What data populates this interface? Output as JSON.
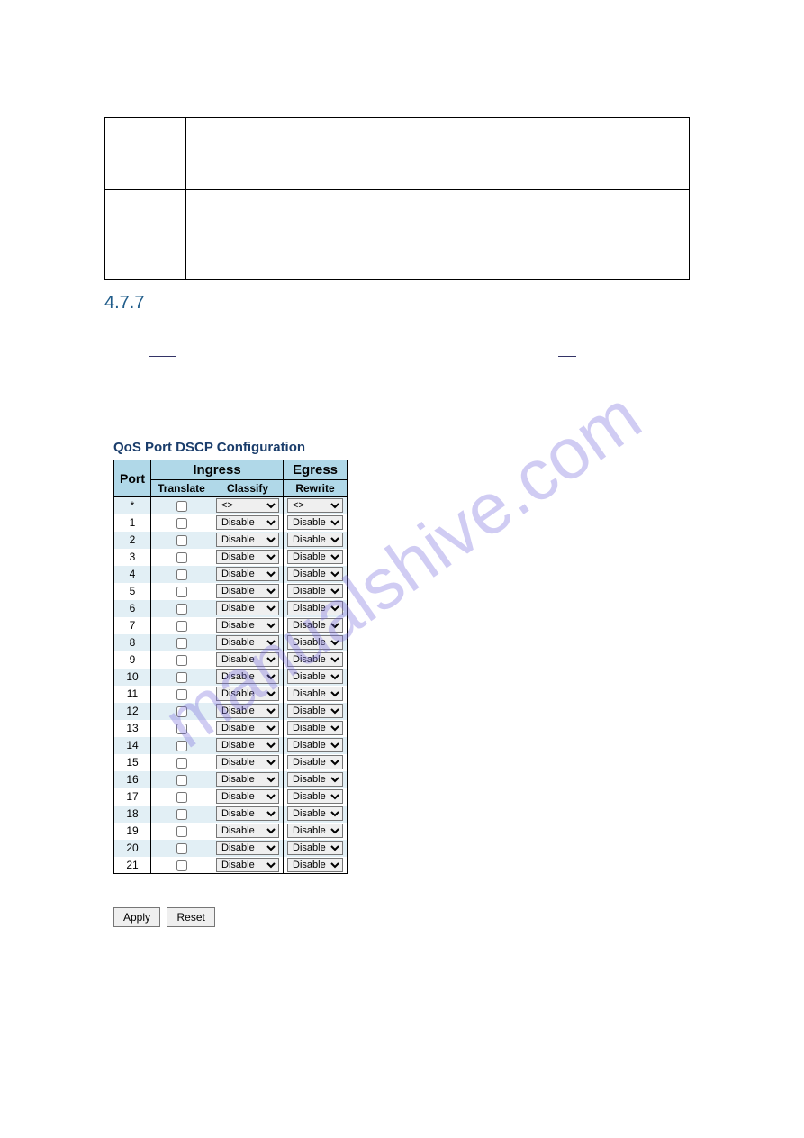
{
  "watermark_text": "manualshive.com",
  "section_number": "4.7.7",
  "config_title": "QoS Port DSCP Configuration",
  "colors": {
    "header_bg": "#b0d8e8",
    "row_odd_bg": "#e2eff5",
    "row_even_bg": "#ffffff",
    "border": "#000000",
    "title_color": "#1a3d6b",
    "section_color": "#1f5c8a",
    "watermark_color": "rgba(120, 110, 220, 0.35)"
  },
  "table": {
    "headers": {
      "port": "Port",
      "ingress": "Ingress",
      "egress": "Egress",
      "translate": "Translate",
      "classify": "Classify",
      "rewrite": "Rewrite"
    },
    "wildcard_row": {
      "port": "*",
      "classify_value": "<>",
      "rewrite_value": "<>"
    },
    "rows": [
      {
        "port": "1",
        "translate": false,
        "classify": "Disable",
        "rewrite": "Disable"
      },
      {
        "port": "2",
        "translate": false,
        "classify": "Disable",
        "rewrite": "Disable"
      },
      {
        "port": "3",
        "translate": false,
        "classify": "Disable",
        "rewrite": "Disable"
      },
      {
        "port": "4",
        "translate": false,
        "classify": "Disable",
        "rewrite": "Disable"
      },
      {
        "port": "5",
        "translate": false,
        "classify": "Disable",
        "rewrite": "Disable"
      },
      {
        "port": "6",
        "translate": false,
        "classify": "Disable",
        "rewrite": "Disable"
      },
      {
        "port": "7",
        "translate": false,
        "classify": "Disable",
        "rewrite": "Disable"
      },
      {
        "port": "8",
        "translate": false,
        "classify": "Disable",
        "rewrite": "Disable"
      },
      {
        "port": "9",
        "translate": false,
        "classify": "Disable",
        "rewrite": "Disable"
      },
      {
        "port": "10",
        "translate": false,
        "classify": "Disable",
        "rewrite": "Disable"
      },
      {
        "port": "11",
        "translate": false,
        "classify": "Disable",
        "rewrite": "Disable"
      },
      {
        "port": "12",
        "translate": false,
        "classify": "Disable",
        "rewrite": "Disable"
      },
      {
        "port": "13",
        "translate": false,
        "classify": "Disable",
        "rewrite": "Disable"
      },
      {
        "port": "14",
        "translate": false,
        "classify": "Disable",
        "rewrite": "Disable"
      },
      {
        "port": "15",
        "translate": false,
        "classify": "Disable",
        "rewrite": "Disable"
      },
      {
        "port": "16",
        "translate": false,
        "classify": "Disable",
        "rewrite": "Disable"
      },
      {
        "port": "17",
        "translate": false,
        "classify": "Disable",
        "rewrite": "Disable"
      },
      {
        "port": "18",
        "translate": false,
        "classify": "Disable",
        "rewrite": "Disable"
      },
      {
        "port": "19",
        "translate": false,
        "classify": "Disable",
        "rewrite": "Disable"
      },
      {
        "port": "20",
        "translate": false,
        "classify": "Disable",
        "rewrite": "Disable"
      },
      {
        "port": "21",
        "translate": false,
        "classify": "Disable",
        "rewrite": "Disable"
      }
    ]
  },
  "buttons": {
    "apply": "Apply",
    "reset": "Reset"
  }
}
